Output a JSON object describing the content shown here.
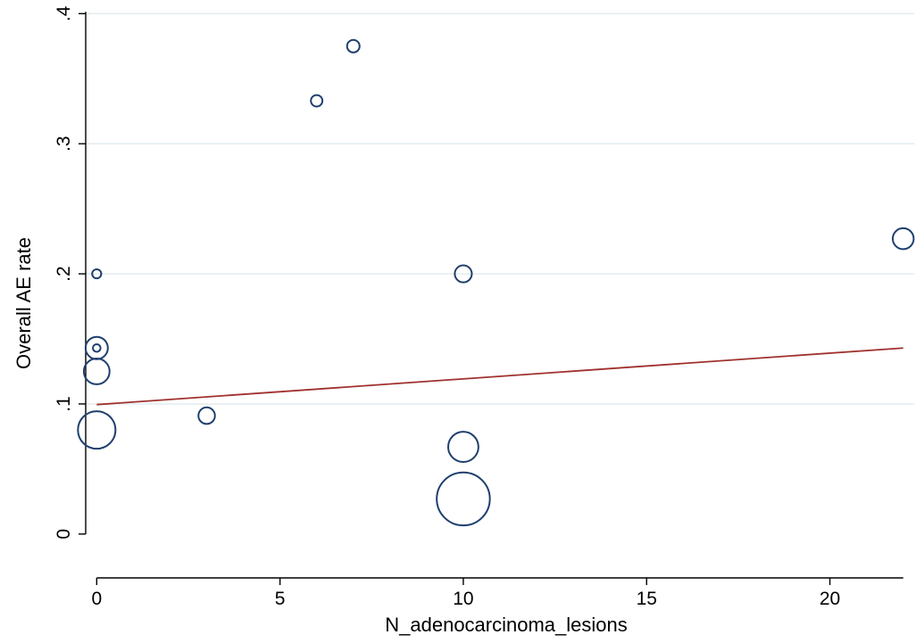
{
  "chart_data": {
    "type": "scatter",
    "title": "",
    "xlabel": "N_adenocarcinoma_lesions",
    "ylabel": "Overall AE rate",
    "xlim": [
      -0.3,
      22.3
    ],
    "ylim": [
      -0.02,
      0.405
    ],
    "x_ticks": [
      0,
      5,
      10,
      15,
      20
    ],
    "x_tick_labels": [
      "0",
      "5",
      "10",
      "15",
      "20"
    ],
    "y_ticks": [
      0,
      0.1,
      0.2,
      0.3,
      0.4
    ],
    "y_tick_labels": [
      "0",
      ".1",
      ".2",
      ".3",
      ".4"
    ],
    "grid": "horizontal",
    "series": [
      {
        "marker": "hollow-circle",
        "color": "#1f3f6e",
        "points": [
          {
            "x": 0,
            "y": 0.2,
            "size": 1
          },
          {
            "x": 0,
            "y": 0.143,
            "size": 6
          },
          {
            "x": 0,
            "y": 0.143,
            "size": 0.7
          },
          {
            "x": 0,
            "y": 0.125,
            "size": 8
          },
          {
            "x": 0,
            "y": 0.08,
            "size": 17
          },
          {
            "x": 3,
            "y": 0.091,
            "size": 3.3
          },
          {
            "x": 6,
            "y": 0.333,
            "size": 1.6
          },
          {
            "x": 7,
            "y": 0.375,
            "size": 1.9
          },
          {
            "x": 10,
            "y": 0.2,
            "size": 3.5
          },
          {
            "x": 10,
            "y": 0.067,
            "size": 11
          },
          {
            "x": 10,
            "y": 0.027,
            "size": 34
          },
          {
            "x": 22,
            "y": 0.227,
            "size": 5.3
          }
        ]
      }
    ],
    "fit_line": {
      "color": "#a0312e",
      "x": [
        0,
        22
      ],
      "y": [
        0.0995,
        0.143
      ]
    },
    "colors": {
      "grid": "#e3ecef",
      "axis": "#000000"
    }
  }
}
